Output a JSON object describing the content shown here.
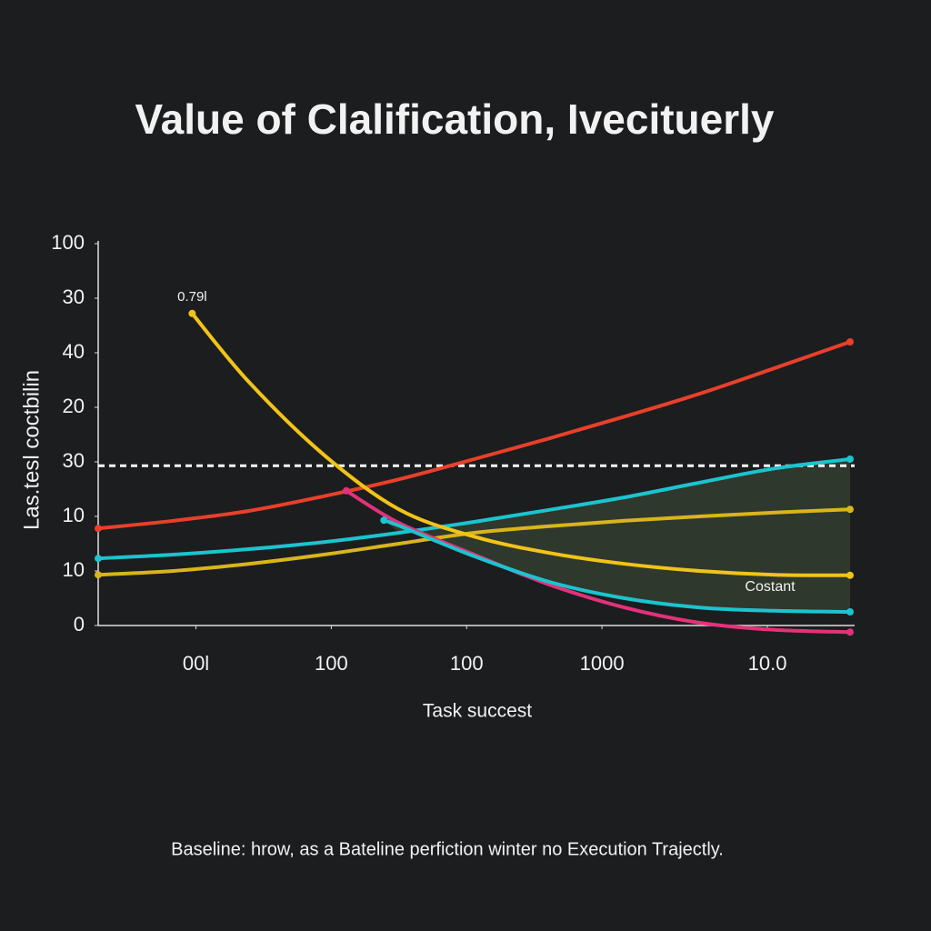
{
  "chart_data": {
    "type": "line",
    "title": "Value of Clalification, Ivecituerly",
    "y_label": "Las.tesl coctbilin",
    "x_label": "Task succest",
    "footer": "Baseline: hrow, as a Bateline perfiction winter no Execution Trajectly.",
    "xlim": [
      0,
      100
    ],
    "xticks": [
      {
        "value": 13,
        "label": "00l"
      },
      {
        "value": 31,
        "label": "100"
      },
      {
        "value": 49,
        "label": "100"
      },
      {
        "value": 67,
        "label": "1000"
      },
      {
        "value": 89,
        "label": "10.0"
      }
    ],
    "ylim": [
      0,
      70
    ],
    "yticks": [
      0,
      {
        "value": 10,
        "label": "10"
      },
      {
        "value": 20,
        "label": "10"
      },
      30,
      {
        "value": 40,
        "label": "20"
      },
      {
        "value": 50,
        "label": "40"
      },
      {
        "value": 60,
        "label": "30"
      },
      {
        "value": 70,
        "label": "100"
      }
    ],
    "reference_line": 29.3,
    "annotations": [
      "0.79l",
      "Costant"
    ],
    "series": [
      {
        "color": "#e8402a",
        "x": [
          0,
          10,
          20,
          30,
          40,
          50,
          60,
          70,
          80,
          90,
          100
        ],
        "values": [
          17.8,
          19.2,
          21,
          23.7,
          26.8,
          30.5,
          34.3,
          38.3,
          42.5,
          47.2,
          52
        ]
      },
      {
        "color": "#1bc4cf",
        "x": [
          0,
          10,
          20,
          30,
          40,
          50,
          60,
          70,
          80,
          90,
          100
        ],
        "values": [
          12.3,
          13,
          14,
          15.3,
          17,
          19,
          21.2,
          23.5,
          26.2,
          28.8,
          30.5
        ]
      },
      {
        "color": "#d9b51c",
        "x": [
          0,
          10,
          20,
          30,
          40,
          50,
          60,
          70,
          80,
          90,
          100
        ],
        "values": [
          9.3,
          10,
          11.3,
          13,
          15,
          17,
          18.2,
          19.2,
          20,
          20.7,
          21.3
        ]
      },
      {
        "color": "#f2c318",
        "x": [
          12.5,
          20,
          30,
          40,
          50,
          60,
          70,
          80,
          90,
          100
        ],
        "values": [
          57.2,
          44.7,
          31.3,
          21.3,
          16.3,
          13.3,
          11.3,
          10,
          9.3,
          9.2
        ]
      },
      {
        "color": "#e2327a",
        "x": [
          33,
          40,
          50,
          60,
          70,
          80,
          90,
          100
        ],
        "values": [
          24.7,
          18.8,
          13,
          7.5,
          3.3,
          0.5,
          -0.8,
          -1.2
        ]
      },
      {
        "color": "#1bc4cf",
        "x": [
          38,
          40,
          50,
          60,
          70,
          80,
          90,
          100
        ],
        "values": [
          19.3,
          18.3,
          12.7,
          8,
          5,
          3.3,
          2.7,
          2.5
        ]
      }
    ]
  }
}
